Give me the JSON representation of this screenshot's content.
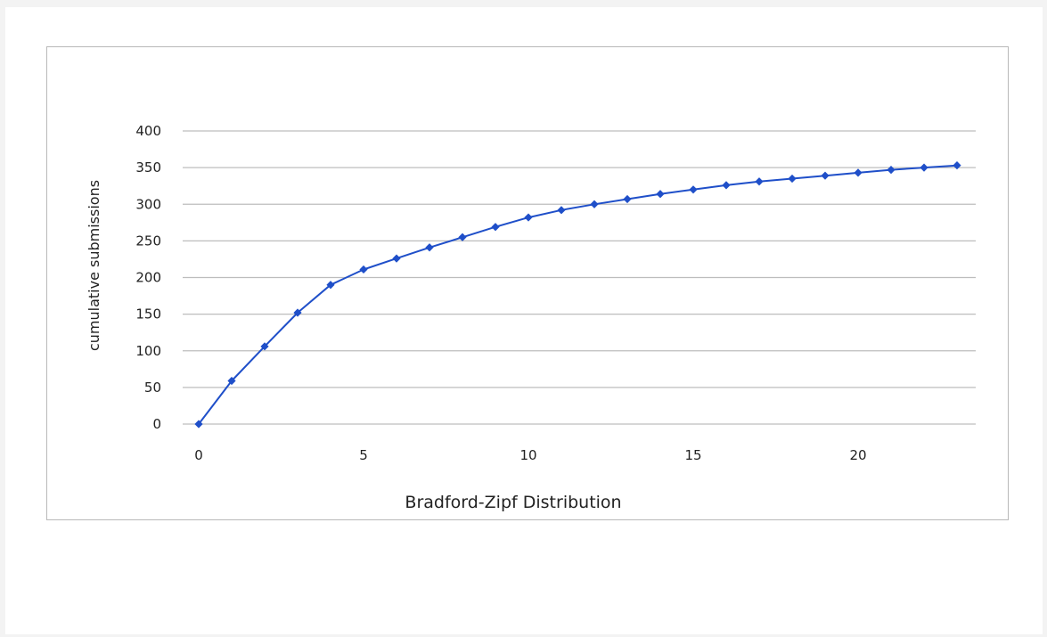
{
  "chart_data": {
    "type": "line",
    "title": "",
    "xlabel": "Bradford-Zipf Distribution",
    "ylabel": "cumulative submissions",
    "xlim": [
      0,
      23
    ],
    "ylim": [
      0,
      400
    ],
    "xticks": [
      0,
      5,
      10,
      15,
      20
    ],
    "yticks": [
      0,
      50,
      100,
      150,
      200,
      250,
      300,
      350,
      400
    ],
    "grid": "horizontal",
    "legend": "none",
    "series": [
      {
        "color": "#1f4fc9",
        "marker": "diamond",
        "points": [
          {
            "x": 0,
            "y": 0
          },
          {
            "x": 1,
            "y": 59
          },
          {
            "x": 2,
            "y": 106
          },
          {
            "x": 3,
            "y": 152
          },
          {
            "x": 4,
            "y": 190
          },
          {
            "x": 5,
            "y": 211
          },
          {
            "x": 6,
            "y": 226
          },
          {
            "x": 7,
            "y": 241
          },
          {
            "x": 8,
            "y": 255
          },
          {
            "x": 9,
            "y": 269
          },
          {
            "x": 10,
            "y": 282
          },
          {
            "x": 11,
            "y": 292
          },
          {
            "x": 12,
            "y": 300
          },
          {
            "x": 13,
            "y": 307
          },
          {
            "x": 14,
            "y": 314
          },
          {
            "x": 15,
            "y": 320
          },
          {
            "x": 16,
            "y": 326
          },
          {
            "x": 17,
            "y": 331
          },
          {
            "x": 18,
            "y": 335
          },
          {
            "x": 19,
            "y": 339
          },
          {
            "x": 20,
            "y": 343
          },
          {
            "x": 21,
            "y": 347
          },
          {
            "x": 22,
            "y": 350
          },
          {
            "x": 23,
            "y": 353
          }
        ]
      }
    ]
  }
}
